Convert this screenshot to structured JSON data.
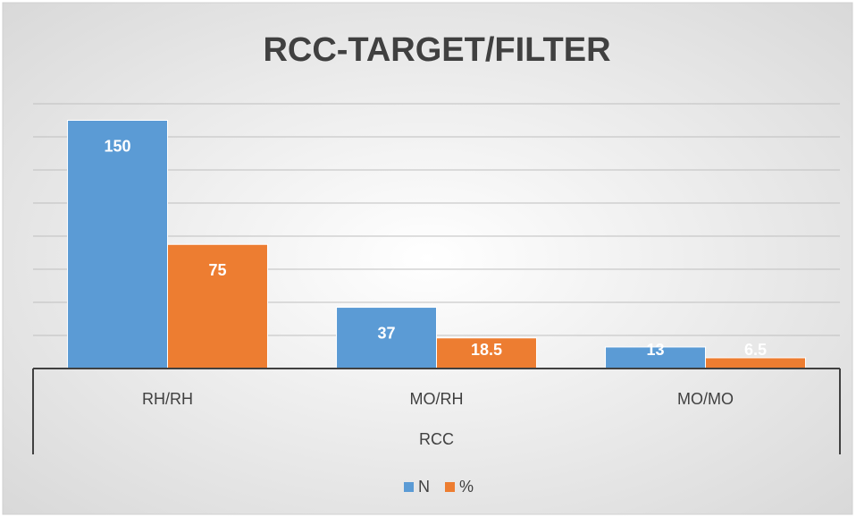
{
  "chart_data": {
    "type": "bar",
    "title": "RCC-TARGET/FILTER",
    "x_label": "RCC",
    "categories": [
      "RH/RH",
      "MO/RH",
      "MO/MO"
    ],
    "series": [
      {
        "name": "N",
        "color": "#5b9bd5",
        "values": [
          150,
          37,
          13
        ]
      },
      {
        "name": "%",
        "color": "#ed7d31",
        "values": [
          75,
          18.5,
          6.5
        ]
      }
    ],
    "ylim": [
      0,
      160
    ],
    "yticks": [
      0,
      20,
      40,
      60,
      80,
      100,
      120,
      140,
      160
    ],
    "grid": true,
    "legend": "bottom",
    "data_labels": true
  }
}
